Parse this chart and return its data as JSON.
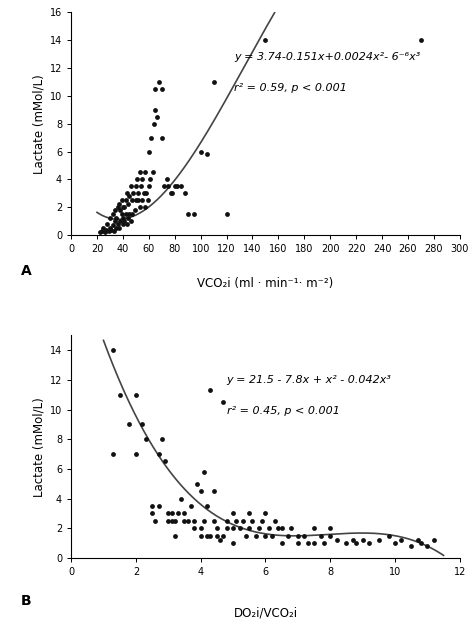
{
  "panel_A": {
    "scatter_x": [
      22,
      24,
      25,
      26,
      27,
      28,
      29,
      30,
      30,
      31,
      32,
      32,
      33,
      34,
      34,
      35,
      35,
      36,
      36,
      37,
      37,
      38,
      38,
      39,
      39,
      40,
      40,
      40,
      41,
      41,
      42,
      42,
      43,
      43,
      44,
      44,
      45,
      45,
      46,
      46,
      47,
      47,
      48,
      49,
      50,
      50,
      51,
      52,
      52,
      53,
      53,
      54,
      55,
      55,
      56,
      57,
      57,
      58,
      59,
      60,
      60,
      61,
      62,
      63,
      64,
      65,
      65,
      66,
      68,
      70,
      70,
      72,
      74,
      75,
      77,
      78,
      80,
      82,
      85,
      88,
      90,
      95,
      100,
      105,
      110,
      120,
      150,
      270
    ],
    "scatter_y": [
      0.2,
      0.3,
      0.5,
      0.2,
      0.4,
      0.8,
      0.3,
      0.5,
      1.2,
      0.4,
      0.7,
      1.5,
      0.3,
      1.0,
      1.8,
      0.5,
      1.2,
      0.8,
      2.0,
      0.5,
      2.2,
      1.0,
      1.8,
      1.5,
      2.5,
      0.8,
      1.2,
      2.0,
      1.0,
      2.0,
      1.5,
      2.5,
      0.8,
      3.0,
      1.2,
      2.2,
      1.5,
      2.8,
      1.0,
      3.5,
      1.5,
      2.5,
      3.0,
      1.8,
      2.5,
      3.5,
      4.0,
      3.0,
      2.5,
      4.5,
      2.0,
      3.5,
      2.5,
      4.0,
      3.0,
      2.0,
      4.5,
      3.0,
      2.5,
      3.5,
      6.0,
      4.0,
      7.0,
      4.5,
      8.0,
      9.0,
      10.5,
      8.5,
      11.0,
      10.5,
      7.0,
      3.5,
      4.0,
      3.5,
      3.0,
      3.0,
      3.5,
      3.5,
      3.5,
      3.0,
      1.5,
      1.5,
      6.0,
      5.8,
      11.0,
      1.5,
      14.0,
      14.0
    ],
    "curve_x_start": 20,
    "curve_x_end": 275,
    "curve_coeffs": [
      3.74,
      -0.151,
      0.0024,
      -6e-06
    ],
    "equation_line1": "y = 3.74-0.151x+0.0024x",
    "equation_sup1": "2",
    "equation_line1b": "- 6",
    "equation_sup2": "-6",
    "equation_line1c": "x",
    "equation_sup3": "3",
    "equation_text": "y = 3.74-0.151x+0.0024x²- 6⁻⁶x³",
    "r2_text": "r² = 0.59, p < 0.001",
    "xlabel": "VCO₂i (ml · min⁻¹· m⁻²)",
    "ylabel": "Lactate (mMol/L)",
    "xlim": [
      0,
      300
    ],
    "ylim": [
      0,
      16
    ],
    "xticks": [
      0,
      20,
      40,
      60,
      80,
      100,
      120,
      140,
      160,
      180,
      200,
      220,
      240,
      260,
      280,
      300
    ],
    "yticks": [
      0,
      2,
      4,
      6,
      8,
      10,
      12,
      14,
      16
    ],
    "panel_label": "A"
  },
  "panel_B": {
    "scatter_x": [
      1.3,
      1.3,
      1.5,
      1.8,
      2.0,
      2.0,
      2.2,
      2.3,
      2.5,
      2.5,
      2.6,
      2.7,
      2.7,
      2.8,
      2.9,
      3.0,
      3.0,
      3.1,
      3.1,
      3.2,
      3.2,
      3.3,
      3.4,
      3.5,
      3.5,
      3.6,
      3.7,
      3.8,
      3.8,
      3.9,
      4.0,
      4.0,
      4.0,
      4.1,
      4.1,
      4.2,
      4.2,
      4.3,
      4.3,
      4.4,
      4.4,
      4.5,
      4.5,
      4.6,
      4.7,
      4.7,
      4.8,
      4.8,
      5.0,
      5.0,
      5.0,
      5.1,
      5.2,
      5.3,
      5.4,
      5.5,
      5.5,
      5.6,
      5.7,
      5.8,
      5.9,
      6.0,
      6.0,
      6.1,
      6.2,
      6.3,
      6.4,
      6.5,
      6.5,
      6.7,
      6.8,
      7.0,
      7.0,
      7.2,
      7.3,
      7.5,
      7.5,
      7.7,
      7.8,
      8.0,
      8.0,
      8.2,
      8.5,
      8.7,
      8.8,
      9.0,
      9.2,
      9.5,
      9.8,
      10.0,
      10.2,
      10.5,
      10.7,
      10.8,
      11.0,
      11.2
    ],
    "scatter_y": [
      14.0,
      7.0,
      11.0,
      9.0,
      7.0,
      11.0,
      9.0,
      8.0,
      3.0,
      3.5,
      2.5,
      7.0,
      3.5,
      8.0,
      6.5,
      3.0,
      2.5,
      2.5,
      3.0,
      2.5,
      1.5,
      3.0,
      4.0,
      2.5,
      3.0,
      2.5,
      3.5,
      2.5,
      2.0,
      5.0,
      2.0,
      4.5,
      1.5,
      2.5,
      5.8,
      1.5,
      3.5,
      1.5,
      11.3,
      2.5,
      4.5,
      1.5,
      2.0,
      1.2,
      1.5,
      10.5,
      2.0,
      2.5,
      2.0,
      3.0,
      1.0,
      2.5,
      2.0,
      2.5,
      1.5,
      2.0,
      3.0,
      2.5,
      1.5,
      2.0,
      2.5,
      1.5,
      3.0,
      2.0,
      1.5,
      2.5,
      2.0,
      1.0,
      2.0,
      1.5,
      2.0,
      1.0,
      1.5,
      1.5,
      1.0,
      1.0,
      2.0,
      1.5,
      1.0,
      1.5,
      2.0,
      1.2,
      1.0,
      1.2,
      1.0,
      1.2,
      1.0,
      1.2,
      1.5,
      1.0,
      1.2,
      0.8,
      1.2,
      1.0,
      0.8,
      1.2
    ],
    "curve_x_start": 1.0,
    "curve_x_end": 11.5,
    "curve_coeffs": [
      21.5,
      -7.8,
      1.0,
      -0.042
    ],
    "equation_text": "y = 21.5 - 7.8x + x² - 0.042x³",
    "r2_text": "r² = 0.45, p < 0.001",
    "xlabel": "DO₂i/VCO₂i",
    "ylabel": "Lactate (mMol/L)",
    "xlim": [
      0,
      12
    ],
    "ylim": [
      0,
      15
    ],
    "xticks": [
      0,
      2,
      4,
      6,
      8,
      10,
      12
    ],
    "yticks": [
      0,
      2,
      4,
      6,
      8,
      10,
      12,
      14
    ],
    "panel_label": "B"
  },
  "figure_bg": "#ffffff",
  "dot_color": "#111111",
  "line_color": "#444444",
  "dot_size": 12,
  "font_size_tick": 7,
  "font_size_label": 8.5,
  "font_size_equation": 8,
  "font_size_panel": 10
}
